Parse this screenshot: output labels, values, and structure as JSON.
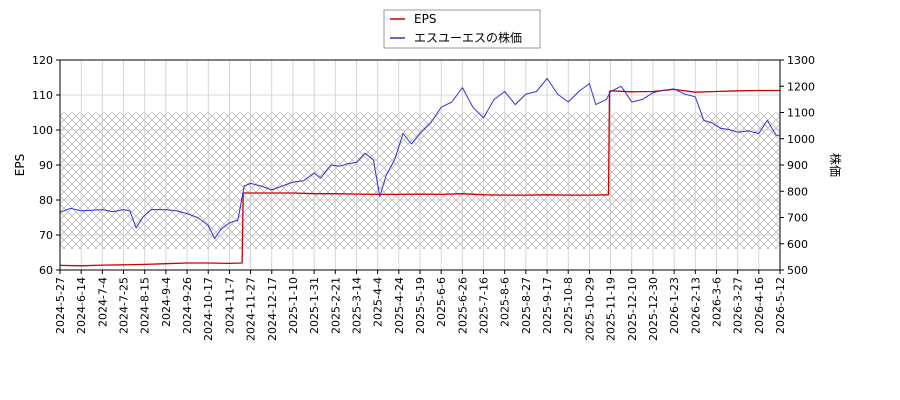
{
  "chart_data": {
    "type": "line",
    "title": "",
    "xlabel": "",
    "ylabel_left": "EPS",
    "ylabel_right": "株価",
    "grid": true,
    "legend_position": "top-center",
    "x_ticks": [
      "2024-5-27",
      "2024-6-14",
      "2024-7-4",
      "2024-7-25",
      "2024-8-15",
      "2024-9-4",
      "2024-9-26",
      "2024-10-17",
      "2024-11-7",
      "2024-11-27",
      "2024-12-17",
      "2025-1-10",
      "2025-1-31",
      "2025-2-21",
      "2025-3-14",
      "2025-4-4",
      "2025-4-24",
      "2025-5-19",
      "2025-6-6",
      "2025-6-26",
      "2025-7-16",
      "2025-8-6",
      "2025-8-27",
      "2025-9-17",
      "2025-10-8",
      "2025-10-29",
      "2025-11-19",
      "2025-12-10",
      "2025-12-30",
      "2026-1-23",
      "2026-2-13",
      "2026-3-6",
      "2026-3-27",
      "2026-4-16",
      "2026-5-12"
    ],
    "y_left_ticks": [
      60,
      70,
      80,
      90,
      100,
      110,
      120
    ],
    "y_left_lim": [
      60,
      120
    ],
    "y_right_ticks": [
      500,
      600,
      700,
      800,
      900,
      1000,
      1100,
      1200,
      1300
    ],
    "y_right_lim": [
      500,
      1300
    ],
    "hatch_band_right": [
      580,
      1100
    ],
    "series": [
      {
        "name": "EPS",
        "axis": "left",
        "color": "#cc0000",
        "points": [
          {
            "t": 0,
            "v": 61.3
          },
          {
            "t": 1,
            "v": 61.2
          },
          {
            "t": 2,
            "v": 61.4
          },
          {
            "t": 3,
            "v": 61.5
          },
          {
            "t": 4,
            "v": 61.6
          },
          {
            "t": 5,
            "v": 61.8
          },
          {
            "t": 6,
            "v": 62.0
          },
          {
            "t": 7,
            "v": 62.0
          },
          {
            "t": 8,
            "v": 61.9
          },
          {
            "t": 8.6,
            "v": 62.0
          },
          {
            "t": 8.65,
            "v": 82.0
          },
          {
            "t": 9,
            "v": 82.0
          },
          {
            "t": 10,
            "v": 82.0
          },
          {
            "t": 11,
            "v": 82.0
          },
          {
            "t": 12,
            "v": 81.8
          },
          {
            "t": 13,
            "v": 81.8
          },
          {
            "t": 14,
            "v": 81.7
          },
          {
            "t": 15,
            "v": 81.6
          },
          {
            "t": 16,
            "v": 81.6
          },
          {
            "t": 17,
            "v": 81.7
          },
          {
            "t": 18,
            "v": 81.6
          },
          {
            "t": 19,
            "v": 81.8
          },
          {
            "t": 20,
            "v": 81.5
          },
          {
            "t": 21,
            "v": 81.4
          },
          {
            "t": 22,
            "v": 81.4
          },
          {
            "t": 23,
            "v": 81.5
          },
          {
            "t": 24,
            "v": 81.4
          },
          {
            "t": 25,
            "v": 81.4
          },
          {
            "t": 25.9,
            "v": 81.5
          },
          {
            "t": 25.95,
            "v": 111.0
          },
          {
            "t": 26,
            "v": 111.2
          },
          {
            "t": 27,
            "v": 110.9
          },
          {
            "t": 28,
            "v": 111.0
          },
          {
            "t": 29,
            "v": 111.6
          },
          {
            "t": 30,
            "v": 110.8
          },
          {
            "t": 31,
            "v": 111.0
          },
          {
            "t": 32,
            "v": 111.2
          },
          {
            "t": 33,
            "v": 111.3
          },
          {
            "t": 34,
            "v": 111.3
          },
          {
            "t": 34.6,
            "v": 111.0
          }
        ]
      },
      {
        "name": "エスユーエスの株価",
        "axis": "right",
        "color": "#3333cc",
        "points": [
          {
            "t": 0,
            "v": 720
          },
          {
            "t": 0.5,
            "v": 735
          },
          {
            "t": 1,
            "v": 725
          },
          {
            "t": 1.5,
            "v": 728
          },
          {
            "t": 2,
            "v": 730
          },
          {
            "t": 2.5,
            "v": 722
          },
          {
            "t": 3,
            "v": 730
          },
          {
            "t": 3.3,
            "v": 725
          },
          {
            "t": 3.6,
            "v": 660
          },
          {
            "t": 3.9,
            "v": 700
          },
          {
            "t": 4.3,
            "v": 730
          },
          {
            "t": 5,
            "v": 730
          },
          {
            "t": 5.5,
            "v": 725
          },
          {
            "t": 6,
            "v": 715
          },
          {
            "t": 6.5,
            "v": 700
          },
          {
            "t": 7,
            "v": 670
          },
          {
            "t": 7.3,
            "v": 620
          },
          {
            "t": 7.6,
            "v": 655
          },
          {
            "t": 8,
            "v": 680
          },
          {
            "t": 8.4,
            "v": 690
          },
          {
            "t": 8.7,
            "v": 820
          },
          {
            "t": 9,
            "v": 830
          },
          {
            "t": 9.5,
            "v": 820
          },
          {
            "t": 10,
            "v": 805
          },
          {
            "t": 10.5,
            "v": 820
          },
          {
            "t": 11,
            "v": 835
          },
          {
            "t": 11.5,
            "v": 840
          },
          {
            "t": 12,
            "v": 870
          },
          {
            "t": 12.3,
            "v": 850
          },
          {
            "t": 12.8,
            "v": 900
          },
          {
            "t": 13.2,
            "v": 895
          },
          {
            "t": 13.6,
            "v": 905
          },
          {
            "t": 14,
            "v": 910
          },
          {
            "t": 14.4,
            "v": 945
          },
          {
            "t": 14.8,
            "v": 920
          },
          {
            "t": 15.1,
            "v": 780
          },
          {
            "t": 15.4,
            "v": 860
          },
          {
            "t": 15.8,
            "v": 920
          },
          {
            "t": 16.2,
            "v": 1020
          },
          {
            "t": 16.6,
            "v": 980
          },
          {
            "t": 17,
            "v": 1020
          },
          {
            "t": 17.5,
            "v": 1060
          },
          {
            "t": 18,
            "v": 1120
          },
          {
            "t": 18.5,
            "v": 1140
          },
          {
            "t": 19,
            "v": 1195
          },
          {
            "t": 19.5,
            "v": 1120
          },
          {
            "t": 20,
            "v": 1080
          },
          {
            "t": 20.5,
            "v": 1150
          },
          {
            "t": 21,
            "v": 1180
          },
          {
            "t": 21.5,
            "v": 1130
          },
          {
            "t": 22,
            "v": 1170
          },
          {
            "t": 22.5,
            "v": 1180
          },
          {
            "t": 23,
            "v": 1230
          },
          {
            "t": 23.5,
            "v": 1170
          },
          {
            "t": 24,
            "v": 1140
          },
          {
            "t": 24.5,
            "v": 1180
          },
          {
            "t": 25,
            "v": 1210
          },
          {
            "t": 25.3,
            "v": 1130
          },
          {
            "t": 25.8,
            "v": 1150
          },
          {
            "t": 26,
            "v": 1180
          },
          {
            "t": 26.5,
            "v": 1200
          },
          {
            "t": 27,
            "v": 1140
          },
          {
            "t": 27.5,
            "v": 1150
          },
          {
            "t": 28,
            "v": 1175
          },
          {
            "t": 28.5,
            "v": 1185
          },
          {
            "t": 29,
            "v": 1190
          },
          {
            "t": 29.5,
            "v": 1170
          },
          {
            "t": 30,
            "v": 1160
          },
          {
            "t": 30.4,
            "v": 1070
          },
          {
            "t": 30.8,
            "v": 1060
          },
          {
            "t": 31.2,
            "v": 1040
          },
          {
            "t": 31.6,
            "v": 1035
          },
          {
            "t": 32,
            "v": 1025
          },
          {
            "t": 32.5,
            "v": 1030
          },
          {
            "t": 33,
            "v": 1020
          },
          {
            "t": 33.4,
            "v": 1070
          },
          {
            "t": 33.8,
            "v": 1015
          },
          {
            "t": 34.2,
            "v": 1005
          },
          {
            "t": 34.6,
            "v": 1000
          }
        ]
      }
    ]
  }
}
